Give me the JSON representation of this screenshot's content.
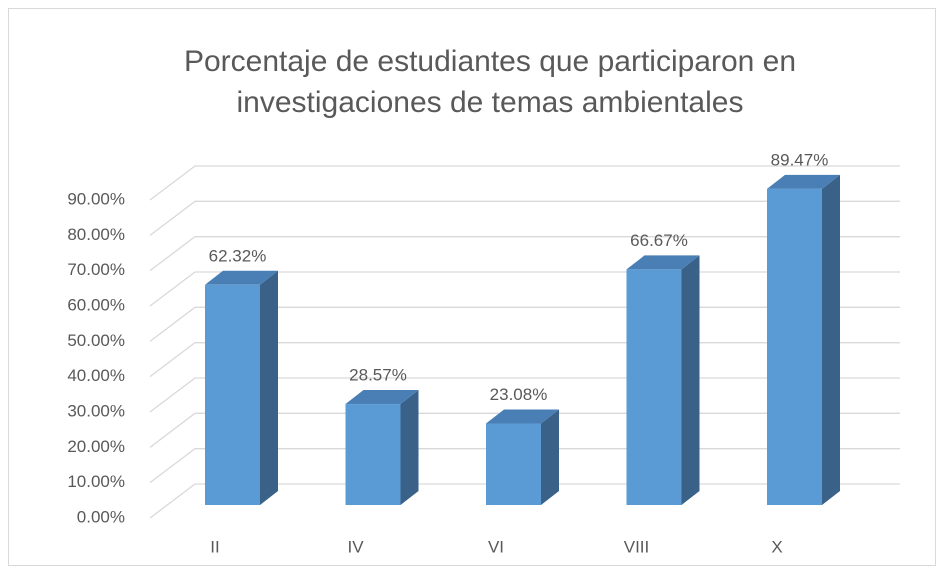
{
  "chart_data": {
    "type": "bar",
    "title": "Porcentaje de estudiantes que participaron en investigaciones de temas  ambientales",
    "title_lines": [
      "Porcentaje de estudiantes que participaron en",
      "investigaciones de temas  ambientales"
    ],
    "categories": [
      "II",
      "IV",
      "VI",
      "VIII",
      "X"
    ],
    "values": [
      62.32,
      28.57,
      23.08,
      66.67,
      89.47
    ],
    "value_labels": [
      "62.32%",
      "28.57%",
      "23.08%",
      "66.67%",
      "89.47%"
    ],
    "color": "#5b9bd5",
    "ylim": [
      0,
      90
    ],
    "yticks": [
      {
        "value": 0,
        "label": "0.00%"
      },
      {
        "value": 10,
        "label": "10.00%"
      },
      {
        "value": 20,
        "label": "20.00%"
      },
      {
        "value": 30,
        "label": "30.00%"
      },
      {
        "value": 40,
        "label": "40.00%"
      },
      {
        "value": 50,
        "label": "50.00%"
      },
      {
        "value": 60,
        "label": "60.00%"
      },
      {
        "value": 70,
        "label": "70.00%"
      },
      {
        "value": 80,
        "label": "80.00%"
      },
      {
        "value": 90,
        "label": "90.00%"
      }
    ],
    "grid": true
  }
}
